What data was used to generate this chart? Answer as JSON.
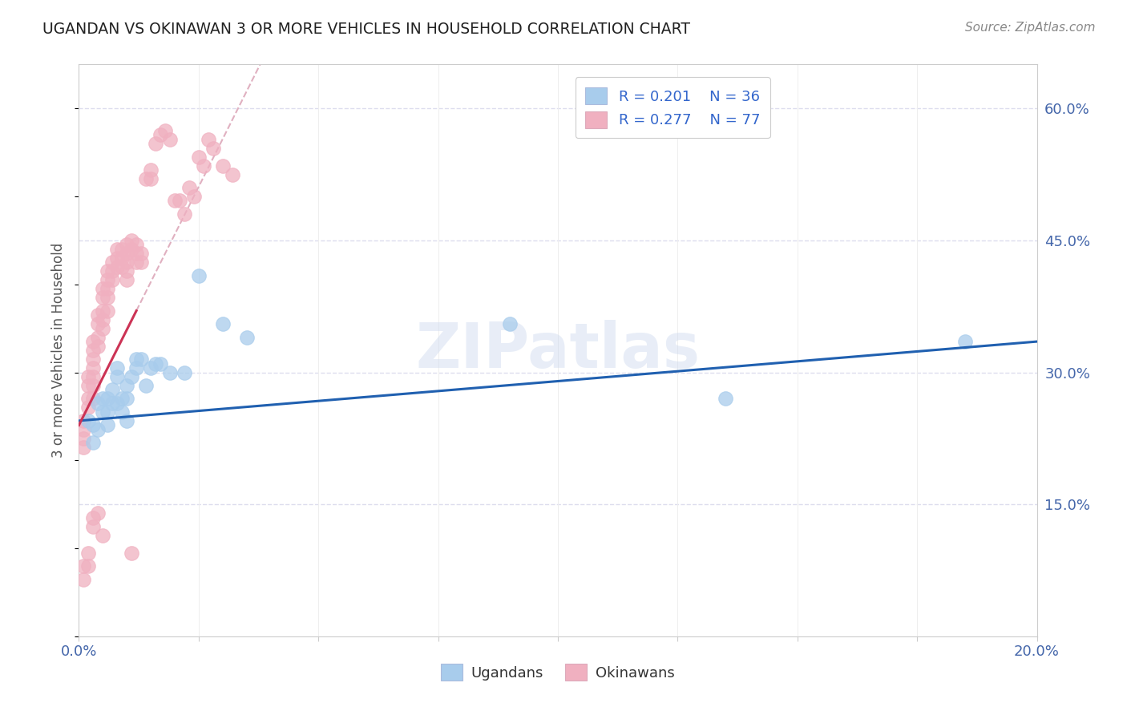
{
  "title": "UGANDAN VS OKINAWAN 3 OR MORE VEHICLES IN HOUSEHOLD CORRELATION CHART",
  "source": "Source: ZipAtlas.com",
  "ylabel": "3 or more Vehicles in Household",
  "xlim": [
    0.0,
    0.2
  ],
  "ylim": [
    0.0,
    0.65
  ],
  "xtick_positions": [
    0.0,
    0.025,
    0.05,
    0.075,
    0.1,
    0.125,
    0.15,
    0.175,
    0.2
  ],
  "xtick_labels": [
    "0.0%",
    "",
    "",
    "",
    "",
    "",
    "",
    "",
    "20.0%"
  ],
  "yticks_right": [
    0.15,
    0.3,
    0.45,
    0.6
  ],
  "ytick_right_labels": [
    "15.0%",
    "30.0%",
    "45.0%",
    "60.0%"
  ],
  "blue_color": "#a8ccec",
  "pink_color": "#f0b0c0",
  "trend_blue_color": "#2060b0",
  "trend_pink_color": "#cc3355",
  "diagonal_color": "#e0b0c0",
  "watermark": "ZIPatlas",
  "legend_color": "#3366cc",
  "ugandan_x": [
    0.002,
    0.003,
    0.003,
    0.004,
    0.004,
    0.005,
    0.005,
    0.006,
    0.006,
    0.006,
    0.007,
    0.007,
    0.008,
    0.008,
    0.008,
    0.009,
    0.009,
    0.01,
    0.01,
    0.01,
    0.011,
    0.012,
    0.012,
    0.013,
    0.014,
    0.015,
    0.016,
    0.017,
    0.019,
    0.022,
    0.025,
    0.03,
    0.035,
    0.09,
    0.135,
    0.185
  ],
  "ugandan_y": [
    0.245,
    0.24,
    0.22,
    0.265,
    0.235,
    0.27,
    0.255,
    0.27,
    0.255,
    0.24,
    0.28,
    0.265,
    0.305,
    0.295,
    0.265,
    0.27,
    0.255,
    0.285,
    0.27,
    0.245,
    0.295,
    0.315,
    0.305,
    0.315,
    0.285,
    0.305,
    0.31,
    0.31,
    0.3,
    0.3,
    0.41,
    0.355,
    0.34,
    0.355,
    0.27,
    0.335
  ],
  "okinawan_x": [
    0.001,
    0.001,
    0.001,
    0.001,
    0.002,
    0.002,
    0.002,
    0.002,
    0.003,
    0.003,
    0.003,
    0.003,
    0.003,
    0.003,
    0.003,
    0.004,
    0.004,
    0.004,
    0.004,
    0.005,
    0.005,
    0.005,
    0.005,
    0.005,
    0.006,
    0.006,
    0.006,
    0.006,
    0.006,
    0.007,
    0.007,
    0.007,
    0.008,
    0.008,
    0.008,
    0.009,
    0.009,
    0.009,
    0.01,
    0.01,
    0.01,
    0.01,
    0.01,
    0.011,
    0.011,
    0.012,
    0.012,
    0.012,
    0.013,
    0.013,
    0.014,
    0.015,
    0.015,
    0.016,
    0.017,
    0.018,
    0.019,
    0.02,
    0.021,
    0.022,
    0.023,
    0.024,
    0.025,
    0.026,
    0.027,
    0.028,
    0.03,
    0.032,
    0.001,
    0.001,
    0.002,
    0.002,
    0.003,
    0.003,
    0.004,
    0.005,
    0.011
  ],
  "okinawan_y": [
    0.245,
    0.235,
    0.225,
    0.215,
    0.295,
    0.285,
    0.27,
    0.26,
    0.335,
    0.325,
    0.315,
    0.305,
    0.295,
    0.285,
    0.27,
    0.365,
    0.355,
    0.34,
    0.33,
    0.395,
    0.385,
    0.37,
    0.36,
    0.35,
    0.415,
    0.405,
    0.395,
    0.385,
    0.37,
    0.425,
    0.415,
    0.405,
    0.44,
    0.43,
    0.42,
    0.44,
    0.43,
    0.42,
    0.445,
    0.435,
    0.425,
    0.415,
    0.405,
    0.45,
    0.44,
    0.445,
    0.435,
    0.425,
    0.435,
    0.425,
    0.52,
    0.53,
    0.52,
    0.56,
    0.57,
    0.575,
    0.565,
    0.495,
    0.495,
    0.48,
    0.51,
    0.5,
    0.545,
    0.535,
    0.565,
    0.555,
    0.535,
    0.525,
    0.08,
    0.065,
    0.095,
    0.08,
    0.135,
    0.125,
    0.14,
    0.115,
    0.095
  ]
}
